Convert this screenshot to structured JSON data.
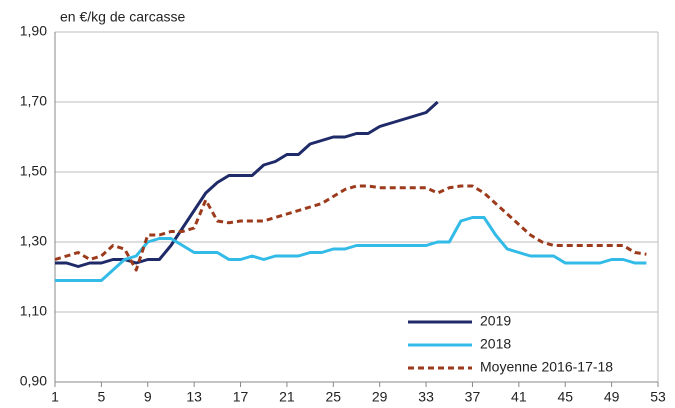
{
  "chart_data": {
    "type": "line",
    "y_label": "en €/kg de carcasse",
    "x": [
      1,
      2,
      3,
      4,
      5,
      6,
      7,
      8,
      9,
      10,
      11,
      12,
      13,
      14,
      15,
      16,
      17,
      18,
      19,
      20,
      21,
      22,
      23,
      24,
      25,
      26,
      27,
      28,
      29,
      30,
      31,
      32,
      33,
      34,
      35,
      36,
      37,
      38,
      39,
      40,
      41,
      42,
      43,
      44,
      45,
      46,
      47,
      48,
      49,
      50,
      51,
      52
    ],
    "xlim": [
      1,
      53
    ],
    "xticks": [
      1,
      5,
      9,
      13,
      17,
      21,
      25,
      29,
      33,
      37,
      41,
      45,
      49,
      53
    ],
    "ylim": [
      0.9,
      1.9
    ],
    "yticks": [
      {
        "value": 0.9,
        "label": "0,90"
      },
      {
        "value": 1.1,
        "label": "1,10"
      },
      {
        "value": 1.3,
        "label": "1,30"
      },
      {
        "value": 1.5,
        "label": "1,50"
      },
      {
        "value": 1.7,
        "label": "1,70"
      },
      {
        "value": 1.9,
        "label": "1,90"
      }
    ],
    "grid": true,
    "legend": "lower right",
    "series": [
      {
        "name": "2019",
        "color": "#1f2a68",
        "dash": false,
        "values": [
          1.24,
          1.24,
          1.23,
          1.24,
          1.24,
          1.25,
          1.25,
          1.24,
          1.25,
          1.25,
          1.29,
          1.34,
          1.39,
          1.44,
          1.47,
          1.49,
          1.49,
          1.49,
          1.52,
          1.53,
          1.55,
          1.55,
          1.58,
          1.59,
          1.6,
          1.6,
          1.61,
          1.61,
          1.63,
          1.64,
          1.65,
          1.66,
          1.67,
          1.7,
          null,
          null,
          null,
          null,
          null,
          null,
          null,
          null,
          null,
          null,
          null,
          null,
          null,
          null,
          null,
          null,
          null,
          null
        ]
      },
      {
        "name": "2018",
        "color": "#33bbe8",
        "dash": false,
        "values": [
          1.19,
          1.19,
          1.19,
          1.19,
          1.19,
          1.22,
          1.25,
          1.26,
          1.3,
          1.31,
          1.31,
          1.29,
          1.27,
          1.27,
          1.27,
          1.25,
          1.25,
          1.26,
          1.25,
          1.26,
          1.26,
          1.26,
          1.27,
          1.27,
          1.28,
          1.28,
          1.29,
          1.29,
          1.29,
          1.29,
          1.29,
          1.29,
          1.29,
          1.3,
          1.3,
          1.36,
          1.37,
          1.37,
          1.32,
          1.28,
          1.27,
          1.26,
          1.26,
          1.26,
          1.24,
          1.24,
          1.24,
          1.24,
          1.25,
          1.25,
          1.24,
          1.24
        ]
      },
      {
        "name": "Moyenne 2016-17-18",
        "color": "#9c3a1c",
        "dash": true,
        "values": [
          1.25,
          1.26,
          1.27,
          1.25,
          1.26,
          1.29,
          1.28,
          1.22,
          1.32,
          1.32,
          1.33,
          1.33,
          1.34,
          1.42,
          1.36,
          1.355,
          1.36,
          1.36,
          1.36,
          1.37,
          1.38,
          1.39,
          1.4,
          1.41,
          1.43,
          1.45,
          1.46,
          1.46,
          1.455,
          1.455,
          1.455,
          1.455,
          1.455,
          1.44,
          1.455,
          1.46,
          1.46,
          1.44,
          1.41,
          1.38,
          1.35,
          1.32,
          1.3,
          1.29,
          1.29,
          1.29,
          1.29,
          1.29,
          1.29,
          1.29,
          1.27,
          1.265
        ]
      }
    ]
  }
}
